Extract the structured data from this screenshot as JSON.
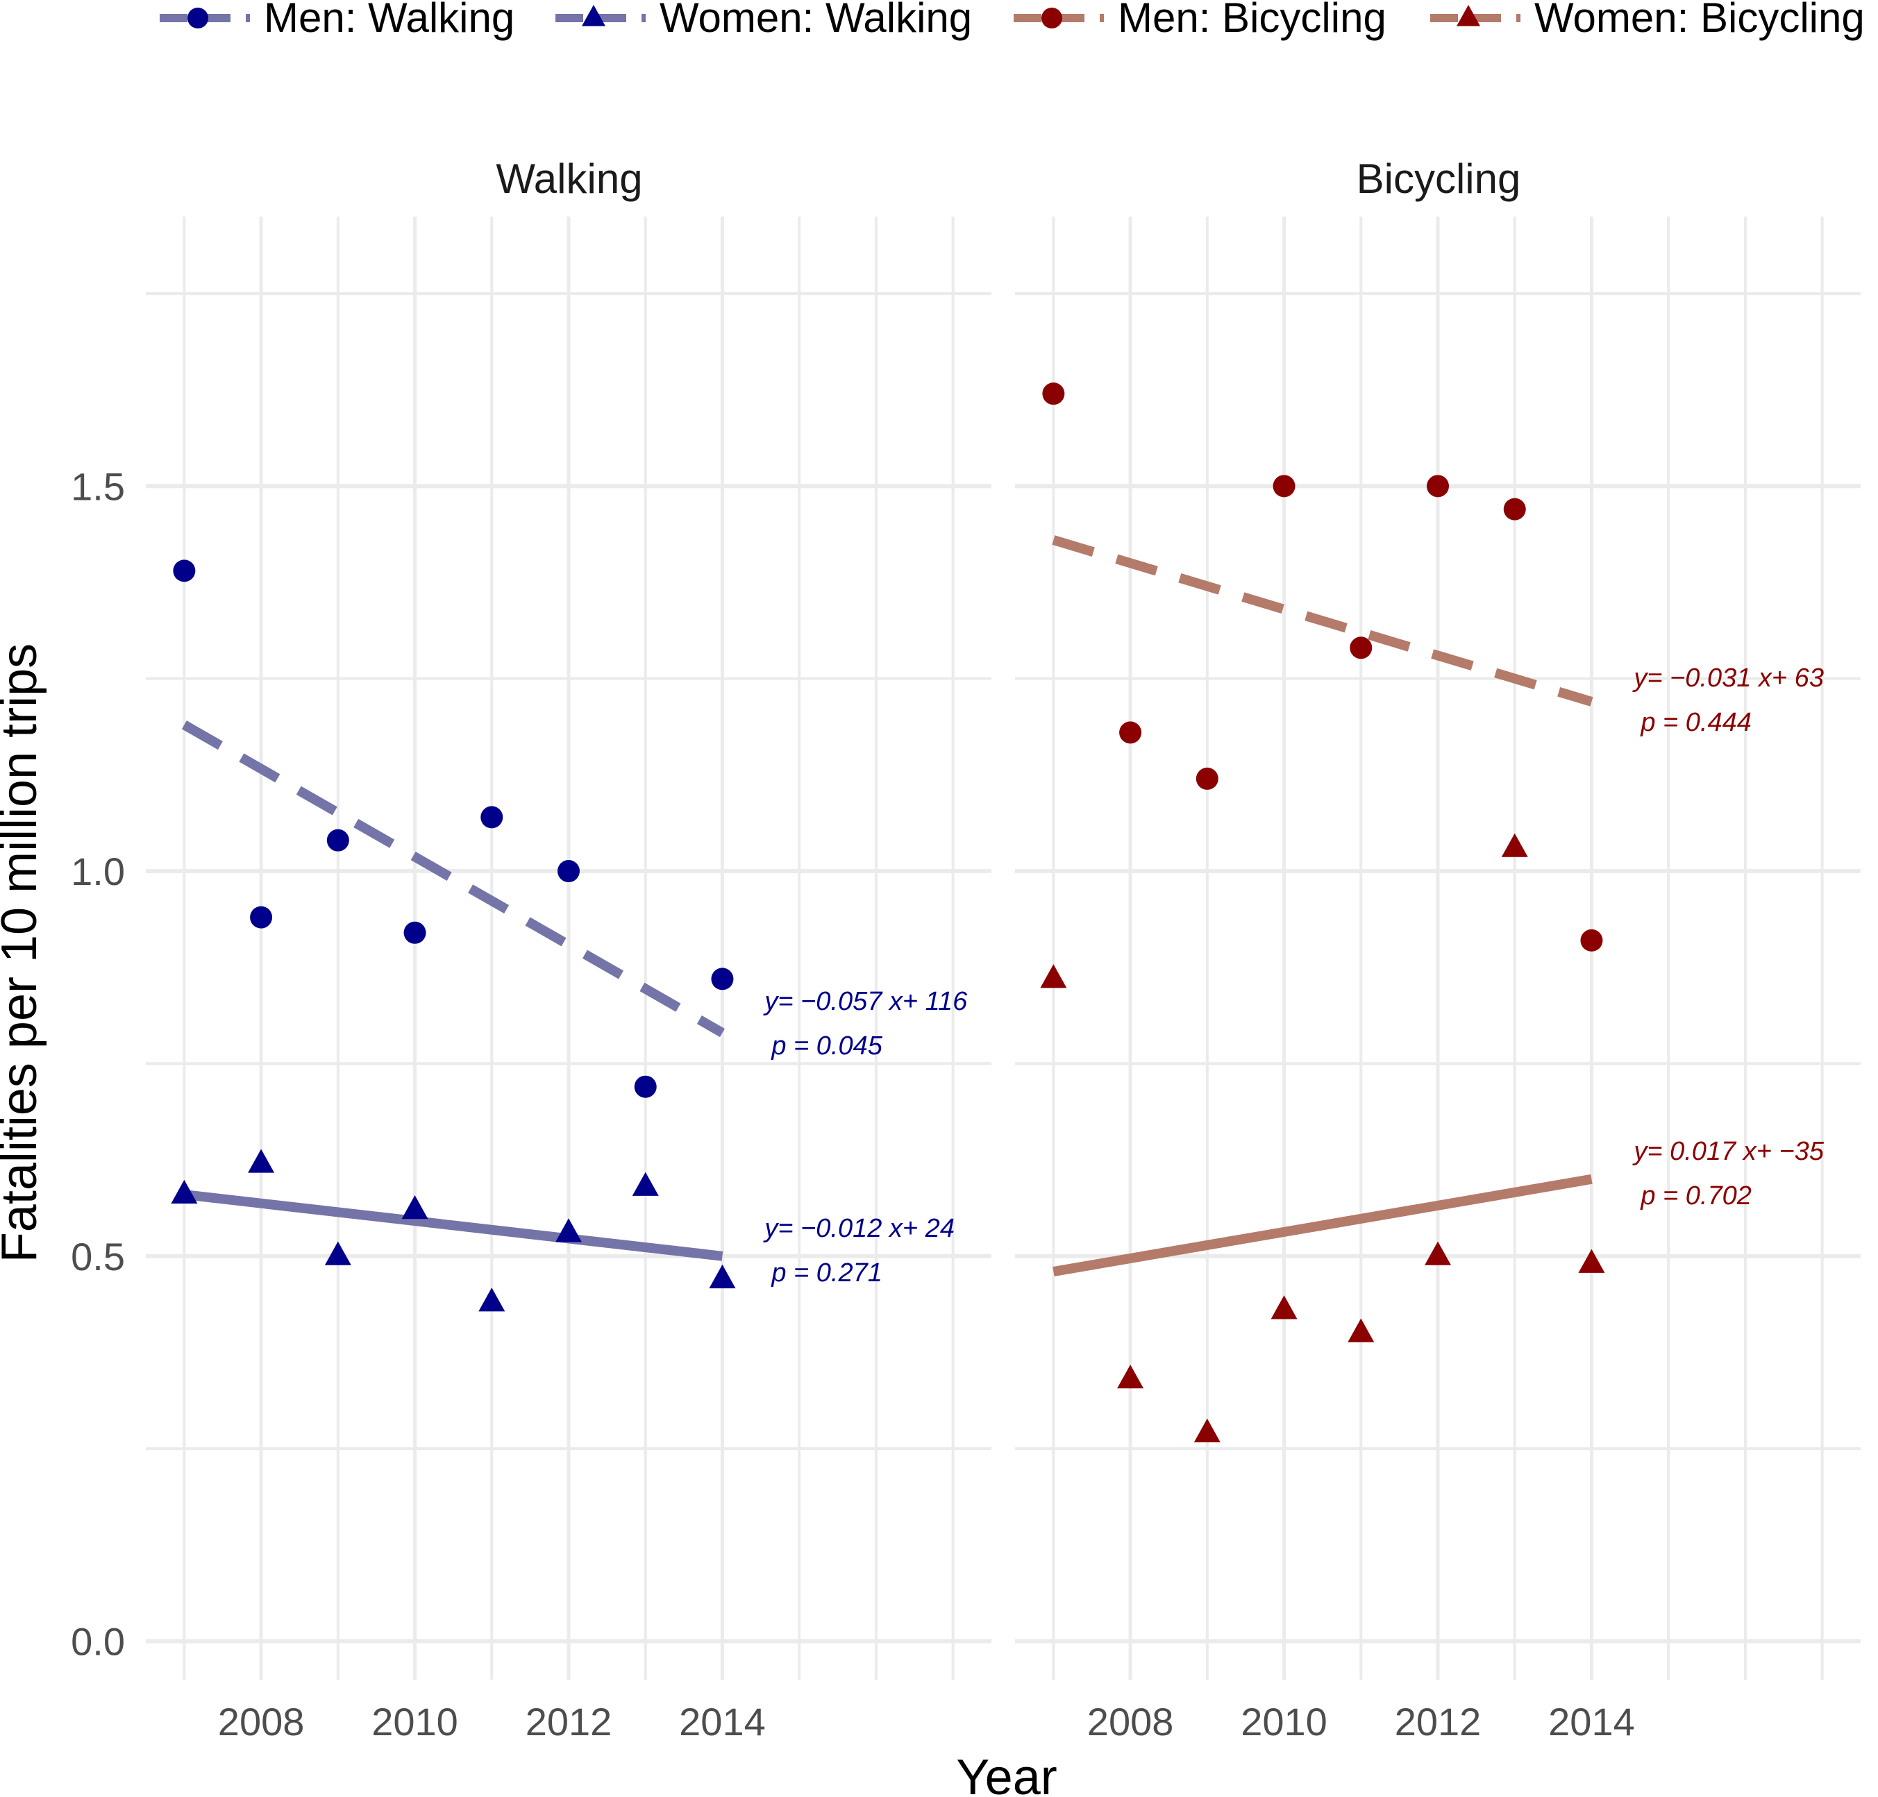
{
  "chart_data": {
    "type": "scatter",
    "xlabel": "Year",
    "ylabel": "Fatalities per 10 million trips",
    "xlim": [
      2006.5,
      2017.5
    ],
    "ylim": [
      -0.05,
      1.85
    ],
    "x_ticks": [
      "2008",
      "2010",
      "2012",
      "2014"
    ],
    "y_ticks": [
      "0.0",
      "0.5",
      "1.0",
      "1.5"
    ],
    "legend": {
      "position": "top",
      "entries": [
        {
          "label": "Men: Walking",
          "color": "#00008b",
          "marker": "circle",
          "line": "dashed",
          "line_color": "#7474a8"
        },
        {
          "label": "Women: Walking",
          "color": "#00008b",
          "marker": "triangle",
          "line": "dashed",
          "line_color": "#7474a8"
        },
        {
          "label": "Men: Bicycling",
          "color": "#8b0000",
          "marker": "circle",
          "line": "dashed",
          "line_color": "#b47a6a"
        },
        {
          "label": "Women: Bicycling",
          "color": "#8b0000",
          "marker": "triangle",
          "line": "dashed",
          "line_color": "#b47a6a"
        }
      ]
    },
    "panels": [
      {
        "strip": "Walking",
        "point_color": "#00008b",
        "line_color": "#7474a8",
        "series": [
          {
            "name": "Men: Walking",
            "marker": "circle",
            "x": [
              2007,
              2008,
              2009,
              2010,
              2011,
              2012,
              2013,
              2014
            ],
            "y": [
              1.39,
              0.94,
              1.04,
              0.92,
              1.07,
              1.0,
              0.72,
              0.86
            ],
            "fit": {
              "x": [
                2007,
                2014
              ],
              "y": [
                1.19,
                0.79
              ],
              "style": "dashed"
            },
            "annotation": {
              "equation": "y= −0.057 x+ 116",
              "p": "p =  0.045",
              "x": 2014.55,
              "y": 0.82
            }
          },
          {
            "name": "Women: Walking",
            "marker": "triangle",
            "x": [
              2007,
              2008,
              2009,
              2010,
              2011,
              2012,
              2013,
              2014
            ],
            "y": [
              0.58,
              0.62,
              0.5,
              0.56,
              0.44,
              0.53,
              0.59,
              0.47
            ],
            "fit": {
              "x": [
                2007,
                2014
              ],
              "y": [
                0.58,
                0.5
              ],
              "style": "solid"
            },
            "annotation": {
              "equation": "y= −0.012 x+ 24",
              "p": "p =  0.271",
              "x": 2014.55,
              "y": 0.525
            }
          }
        ]
      },
      {
        "strip": "Bicycling",
        "point_color": "#8b0000",
        "line_color": "#b47a6a",
        "series": [
          {
            "name": "Men: Bicycling",
            "marker": "circle",
            "x": [
              2007,
              2008,
              2009,
              2010,
              2011,
              2012,
              2013,
              2014
            ],
            "y": [
              1.62,
              1.18,
              1.12,
              1.5,
              1.29,
              1.5,
              1.47,
              0.91
            ],
            "fit": {
              "x": [
                2007,
                2014
              ],
              "y": [
                1.43,
                1.22
              ],
              "style": "dashed"
            },
            "annotation": {
              "equation": "y= −0.031 x+ 63",
              "p": "p =  0.444",
              "x": 2014.55,
              "y": 1.24
            }
          },
          {
            "name": "Women: Bicycling",
            "marker": "triangle",
            "x": [
              2007,
              2008,
              2009,
              2010,
              2011,
              2012,
              2013,
              2014
            ],
            "y": [
              0.86,
              0.34,
              0.27,
              0.43,
              0.4,
              0.5,
              1.03,
              0.49
            ],
            "fit": {
              "x": [
                2007,
                2014
              ],
              "y": [
                0.48,
                0.6
              ],
              "style": "solid"
            },
            "annotation": {
              "equation": "y= 0.017 x+ −35",
              "p": "p =  0.702",
              "x": 2014.55,
              "y": 0.625
            }
          }
        ]
      }
    ]
  }
}
